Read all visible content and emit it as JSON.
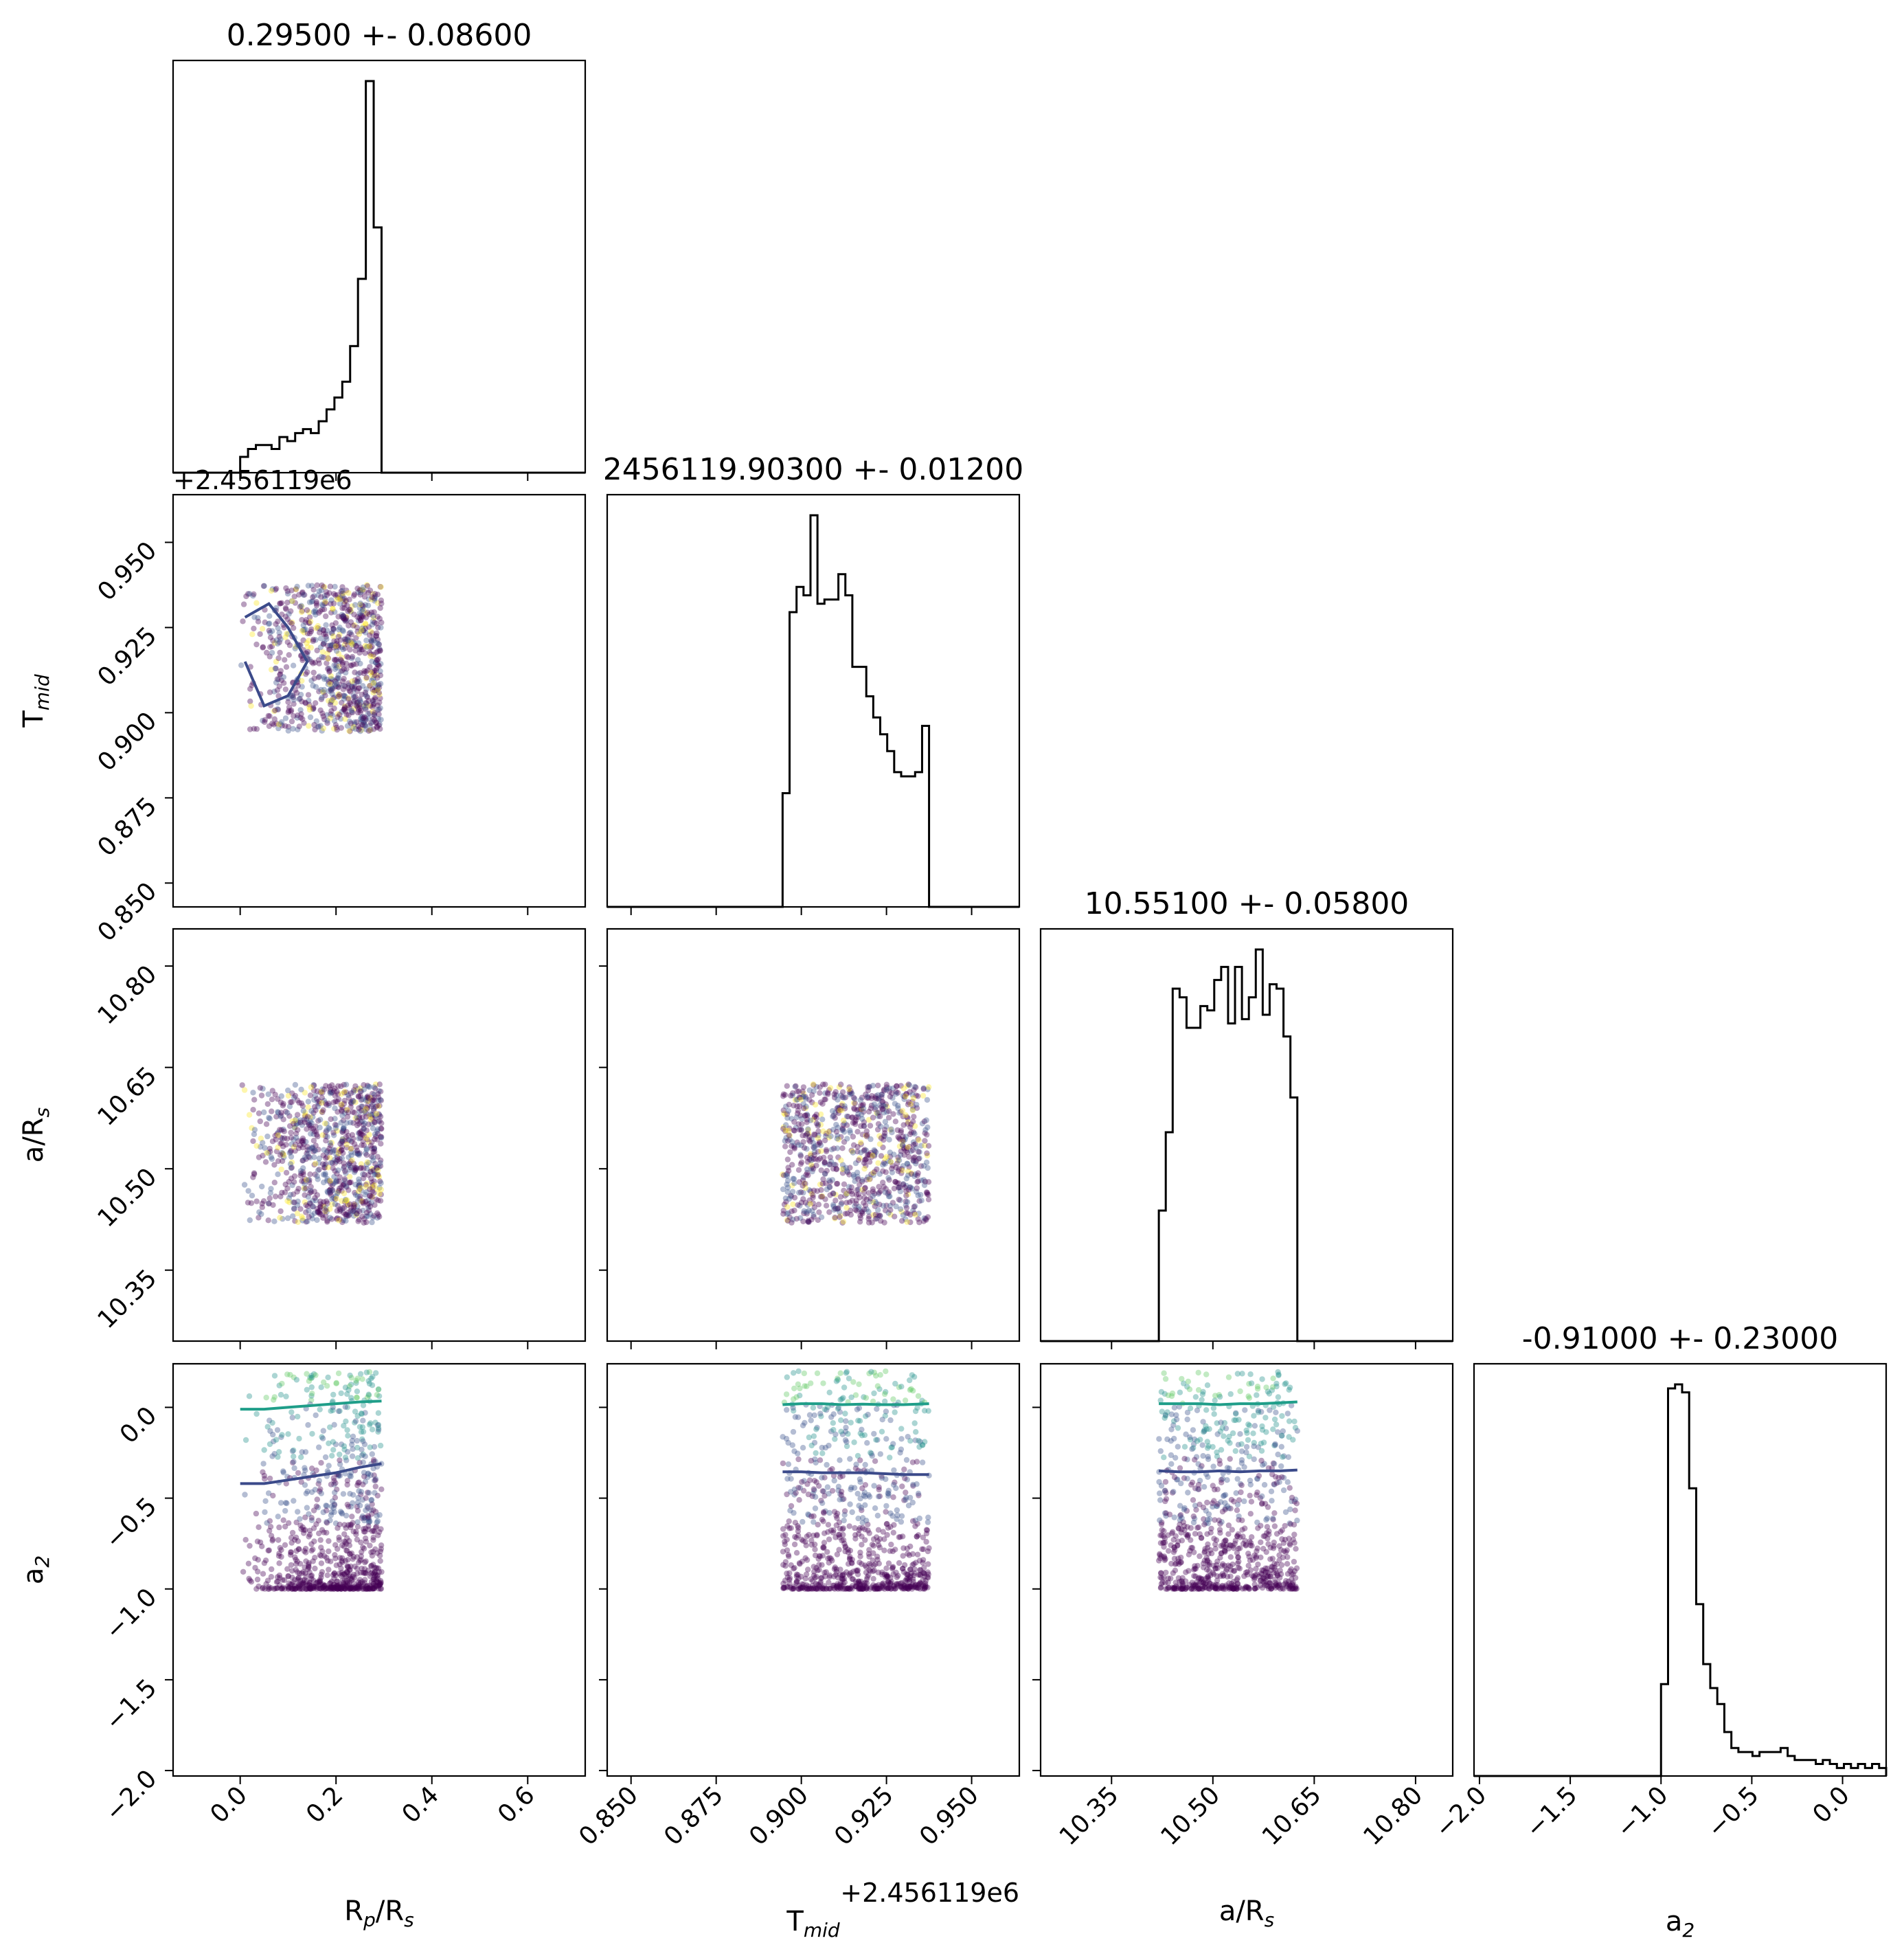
{
  "chart_data": {
    "type": "corner",
    "parameters": [
      {
        "name": "R_p/R_s",
        "label_main": "R",
        "label_sub": "p",
        "label_tail": "/R",
        "label_sub2": "s",
        "range": [
          -0.14,
          0.72
        ],
        "ticks": [
          0.0,
          0.2,
          0.4,
          0.6
        ],
        "tick_labels": [
          "0.0",
          "0.2",
          "0.4",
          "0.6"
        ],
        "title": "0.29500 +- 0.08600",
        "offset_text": "",
        "sample_range": [
          0.0,
          0.295
        ]
      },
      {
        "name": "T_mid",
        "label_main": "T",
        "label_sub": "mid",
        "label_tail": "",
        "label_sub2": "",
        "range": [
          0.843,
          0.964
        ],
        "ticks": [
          0.85,
          0.875,
          0.9,
          0.925,
          0.95
        ],
        "tick_labels": [
          "0.850",
          "0.875",
          "0.900",
          "0.925",
          "0.950"
        ],
        "title": "2456119.90300 +- 0.01200",
        "offset_text": "+2.456119e6",
        "sample_range": [
          0.8945,
          0.9375
        ]
      },
      {
        "name": "a/R_s",
        "label_main": "a/R",
        "label_sub": "s",
        "label_tail": "",
        "label_sub2": "",
        "range": [
          10.245,
          10.855
        ],
        "ticks": [
          10.35,
          10.5,
          10.65,
          10.8
        ],
        "tick_labels": [
          "10.35",
          "10.50",
          "10.65",
          "10.80"
        ],
        "title": "10.55100 +- 0.05800",
        "offset_text": "",
        "sample_range": [
          10.42,
          10.625
        ]
      },
      {
        "name": "a_2",
        "label_main": "a",
        "label_sub": "2",
        "label_tail": "",
        "label_sub2": "",
        "range": [
          -2.03,
          0.24
        ],
        "ticks": [
          -2.0,
          -1.5,
          -1.0,
          -0.5,
          0.0
        ],
        "tick_labels": [
          "−2.0",
          "−1.5",
          "−1.0",
          "−0.5",
          "0.0"
        ],
        "title": "-0.91000 +- 0.23000",
        "offset_text": "",
        "sample_range": [
          -1.0,
          0.2
        ]
      }
    ],
    "histograms": [
      {
        "param": "R_p/R_s",
        "bin_edges": [
          0.0,
          0.295
        ],
        "counts": [
          4,
          6,
          7,
          7,
          6,
          9,
          8,
          10,
          11,
          10,
          13,
          16,
          19,
          23,
          32,
          49,
          99,
          62
        ]
      },
      {
        "param": "T_mid",
        "bin_edges": [
          0.8945,
          0.9375
        ],
        "counts": [
          27,
          70,
          76,
          74,
          93,
          72,
          73,
          73,
          79,
          74,
          57,
          57,
          50,
          45,
          41,
          37,
          32,
          31,
          31,
          32,
          43
        ]
      },
      {
        "param": "a/R_s",
        "bin_edges": [
          10.42,
          10.625
        ],
        "counts": [
          30,
          48,
          81,
          79,
          72,
          72,
          77,
          76,
          83,
          86,
          73,
          86,
          74,
          79,
          90,
          75,
          82,
          81,
          70,
          56
        ]
      },
      {
        "param": "a_2",
        "bin_edges": [
          -1.0,
          0.24
        ],
        "counts": [
          23,
          97,
          98,
          96,
          72,
          43,
          28,
          22,
          18,
          11,
          7,
          6,
          6,
          5,
          6,
          6,
          6,
          7,
          5,
          4,
          4,
          4,
          3,
          4,
          3,
          2,
          3,
          2,
          3,
          2,
          3,
          2
        ]
      }
    ],
    "contours": [
      {
        "pair": "T_mid vs R_p/R_s",
        "level": "inner",
        "color": "#3b4a8a",
        "x": [
          0.01,
          0.06,
          0.1,
          0.14,
          0.1,
          0.05,
          0.01
        ],
        "y": [
          0.928,
          0.932,
          0.925,
          0.915,
          0.905,
          0.902,
          0.915
        ]
      },
      {
        "pair": "a_2 vs R_p/R_s",
        "level": "upper",
        "color": "#1f9e89",
        "x": [
          0.0,
          0.05,
          0.1,
          0.15,
          0.2,
          0.25,
          0.295
        ],
        "y": [
          -0.01,
          -0.01,
          0.0,
          0.01,
          0.02,
          0.03,
          0.035
        ]
      },
      {
        "pair": "a_2 vs R_p/R_s",
        "level": "lower",
        "color": "#3b4a8a",
        "x": [
          0.0,
          0.05,
          0.1,
          0.15,
          0.2,
          0.25,
          0.295
        ],
        "y": [
          -0.42,
          -0.42,
          -0.4,
          -0.38,
          -0.36,
          -0.33,
          -0.31
        ]
      },
      {
        "pair": "a_2 vs T_mid",
        "level": "upper",
        "color": "#1f9e89",
        "x": [
          0.8945,
          0.9,
          0.906,
          0.912,
          0.918,
          0.924,
          0.93,
          0.9375
        ],
        "y": [
          0.015,
          0.02,
          0.02,
          0.015,
          0.018,
          0.015,
          0.015,
          0.02
        ]
      },
      {
        "pair": "a_2 vs T_mid",
        "level": "lower",
        "color": "#3b4a8a",
        "x": [
          0.8945,
          0.9,
          0.906,
          0.912,
          0.918,
          0.924,
          0.93,
          0.9375
        ],
        "y": [
          -0.355,
          -0.355,
          -0.36,
          -0.36,
          -0.36,
          -0.365,
          -0.37,
          -0.37
        ]
      },
      {
        "pair": "a_2 vs a/R_s",
        "level": "upper",
        "color": "#1f9e89",
        "x": [
          10.42,
          10.45,
          10.48,
          10.51,
          10.54,
          10.57,
          10.6,
          10.625
        ],
        "y": [
          0.02,
          0.02,
          0.02,
          0.015,
          0.02,
          0.02,
          0.025,
          0.03
        ]
      },
      {
        "pair": "a_2 vs a/R_s",
        "level": "lower",
        "color": "#3b4a8a",
        "x": [
          10.42,
          10.45,
          10.48,
          10.51,
          10.54,
          10.57,
          10.6,
          10.625
        ],
        "y": [
          -0.35,
          -0.355,
          -0.355,
          -0.35,
          -0.355,
          -0.35,
          -0.35,
          -0.345
        ]
      }
    ],
    "scatter_colormap": [
      "#440154",
      "#3b528b",
      "#21918c",
      "#5ec962",
      "#fde725"
    ],
    "grid": false,
    "legend": "none"
  }
}
